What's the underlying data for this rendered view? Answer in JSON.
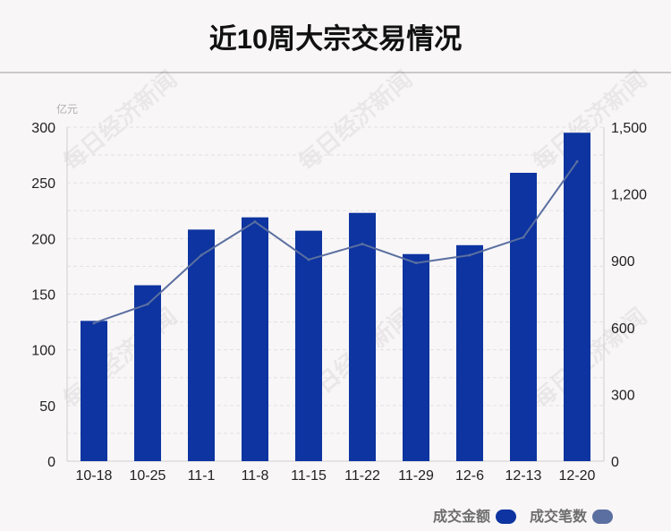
{
  "title": "近10周大宗交易情况",
  "unit_label": "亿元",
  "watermark": "每日经济新闻",
  "chart_data": {
    "type": "bar",
    "categories": [
      "10-18",
      "10-25",
      "11-1",
      "11-8",
      "11-15",
      "11-22",
      "11-29",
      "12-6",
      "12-13",
      "12-20"
    ],
    "series": [
      {
        "name": "成交金额",
        "type": "bar",
        "axis": "left",
        "color": "#0d34a0",
        "values": [
          126,
          158,
          208,
          219,
          207,
          223,
          186,
          194,
          259,
          295
        ]
      },
      {
        "name": "成交笔数",
        "type": "line",
        "axis": "right",
        "color": "#5b6fa0",
        "values": [
          620,
          705,
          925,
          1075,
          905,
          975,
          890,
          925,
          1005,
          1345
        ]
      }
    ],
    "y_left": {
      "min": 0,
      "max": 300,
      "ticks": [
        "0",
        "50",
        "100",
        "150",
        "200",
        "250",
        "300"
      ]
    },
    "y_right": {
      "min": 0,
      "max": 1500,
      "ticks": [
        "0",
        "300",
        "600",
        "900",
        "1,200",
        "1,500"
      ]
    },
    "grid": true,
    "legend_position": "bottom-right"
  },
  "legend": {
    "amount_label": "成交金额",
    "count_label": "成交笔数",
    "amount_color": "#0d34a0",
    "count_color": "#5b6fa0"
  }
}
